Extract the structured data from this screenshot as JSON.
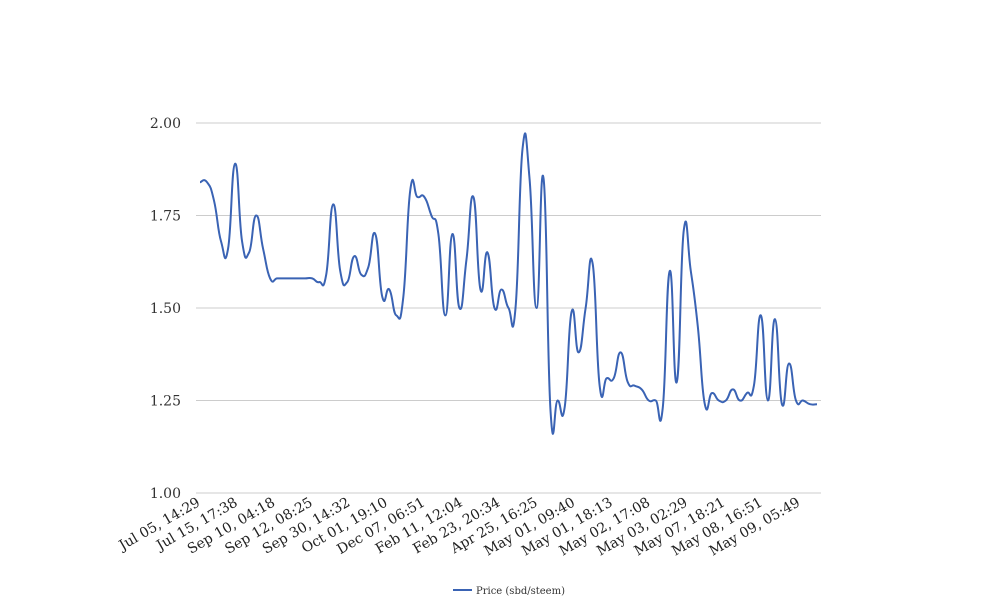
{
  "chart_data": {
    "type": "line",
    "title": "",
    "xlabel": "",
    "ylabel": "",
    "ylim": [
      1.0,
      2.0
    ],
    "yticks": [
      "1.00",
      "1.25",
      "1.50",
      "1.75",
      "2.00"
    ],
    "grid": true,
    "legend_position": "bottom",
    "colors": {
      "series": "#3a63b4",
      "grid": "#cccccc"
    },
    "x_tick_labels": [
      "Jul 05, 14:29",
      "Jul 15, 17:38",
      "Sep 10, 04:18",
      "Sep 12, 08:25",
      "Sep 30, 14:32",
      "Oct 01, 19:10",
      "Dec 07, 06:51",
      "Feb 11, 12:04",
      "Feb 23, 20:34",
      "Apr 25, 16:25",
      "May 01, 09:40",
      "May 01, 18:13",
      "May 02, 17:08",
      "May 03, 02:29",
      "May 07, 18:21",
      "May 08, 16:51",
      "May 09, 05:49"
    ],
    "series": [
      {
        "name": "Price (sbd/steem)",
        "values": [
          1.84,
          1.84,
          1.79,
          1.68,
          1.66,
          1.89,
          1.68,
          1.65,
          1.75,
          1.66,
          1.58,
          1.58,
          1.58,
          1.58,
          1.58,
          1.58,
          1.58,
          1.57,
          1.59,
          1.78,
          1.6,
          1.57,
          1.64,
          1.59,
          1.61,
          1.7,
          1.53,
          1.55,
          1.48,
          1.53,
          1.82,
          1.8,
          1.8,
          1.75,
          1.7,
          1.48,
          1.7,
          1.5,
          1.63,
          1.8,
          1.55,
          1.65,
          1.5,
          1.55,
          1.5,
          1.5,
          1.93,
          1.85,
          1.5,
          1.85,
          1.22,
          1.25,
          1.23,
          1.49,
          1.38,
          1.5,
          1.62,
          1.29,
          1.31,
          1.31,
          1.38,
          1.3,
          1.29,
          1.28,
          1.25,
          1.25,
          1.23,
          1.6,
          1.3,
          1.71,
          1.6,
          1.45,
          1.24,
          1.27,
          1.25,
          1.25,
          1.28,
          1.25,
          1.27,
          1.29,
          1.48,
          1.25,
          1.47,
          1.24,
          1.35,
          1.25,
          1.25,
          1.24,
          1.24
        ]
      }
    ]
  }
}
